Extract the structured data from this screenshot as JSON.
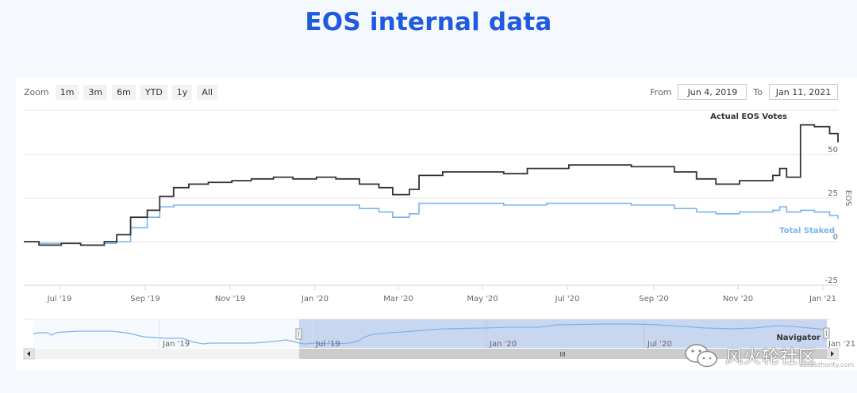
{
  "page": {
    "title": "EOS internal data"
  },
  "toolbar": {
    "zoom_label": "Zoom",
    "zoom_buttons": [
      "1m",
      "3m",
      "6m",
      "YTD",
      "1y",
      "All"
    ],
    "from_label": "From",
    "from_value": "Jun 4, 2019",
    "to_label": "To",
    "to_value": "Jan 11, 2021"
  },
  "navigator": {
    "label": "Navigator",
    "x_labels": [
      "Jan '19",
      "Jul '19",
      "Jan '20",
      "Jul '20",
      "Jan '21"
    ],
    "scroll_grip": "III"
  },
  "watermark": {
    "text": "风火轮社区",
    "credit": "eosauthority.com"
  },
  "colors": {
    "title": "#1f5ae0",
    "votes": "#333333",
    "staked": "#7cb5ec",
    "navigator_fill": "#c9d6ef"
  },
  "chart_data": {
    "type": "line",
    "title": "EOS internal data",
    "xlabel": "",
    "ylabel": "EOS",
    "ylim": [
      -25,
      62
    ],
    "yticks": [
      -25,
      0,
      25,
      50
    ],
    "xticks": [
      "Jul '19",
      "Sep '19",
      "Nov '19",
      "Jan '20",
      "Mar '20",
      "May '20",
      "Jul '20",
      "Sep '20",
      "Nov '20",
      "Jan '21"
    ],
    "grid": true,
    "legend_position": "inline labels at right",
    "x": [
      "2019-06-04",
      "2019-06-15",
      "2019-07-01",
      "2019-07-15",
      "2019-08-01",
      "2019-08-10",
      "2019-08-20",
      "2019-09-01",
      "2019-09-10",
      "2019-09-20",
      "2019-10-01",
      "2019-10-15",
      "2019-11-01",
      "2019-11-15",
      "2019-12-01",
      "2019-12-15",
      "2020-01-01",
      "2020-01-15",
      "2020-02-01",
      "2020-02-15",
      "2020-02-25",
      "2020-03-08",
      "2020-03-15",
      "2020-04-01",
      "2020-04-15",
      "2020-05-01",
      "2020-05-15",
      "2020-06-01",
      "2020-06-15",
      "2020-07-01",
      "2020-07-15",
      "2020-08-01",
      "2020-08-15",
      "2020-09-01",
      "2020-09-15",
      "2020-10-01",
      "2020-10-15",
      "2020-11-01",
      "2020-11-15",
      "2020-11-25",
      "2020-11-30",
      "2020-12-05",
      "2020-12-15",
      "2020-12-25",
      "2021-01-05",
      "2021-01-11"
    ],
    "series": [
      {
        "name": "Actual EOS Votes",
        "color": "#333333",
        "values": [
          0,
          -2,
          -1,
          -2,
          0,
          4,
          14,
          18,
          26,
          31,
          33,
          34,
          35,
          36,
          37,
          36,
          37,
          36,
          33,
          31,
          27,
          30,
          38,
          40,
          40,
          40,
          39,
          42,
          42,
          44,
          44,
          44,
          43,
          43,
          40,
          36,
          33,
          35,
          35,
          38,
          42,
          37,
          67,
          66,
          62,
          57
        ]
      },
      {
        "name": "Total Staked",
        "color": "#7cb5ec",
        "values": [
          0,
          -1,
          -1,
          -2,
          -1,
          0,
          8,
          14,
          20,
          21,
          21,
          21,
          21,
          21,
          21,
          21,
          21,
          21,
          19,
          17,
          14,
          16,
          22,
          22,
          22,
          22,
          21,
          21,
          22,
          22,
          22,
          22,
          21,
          21,
          19,
          17,
          16,
          17,
          17,
          18,
          20,
          17,
          18,
          17,
          15,
          13
        ]
      }
    ]
  }
}
